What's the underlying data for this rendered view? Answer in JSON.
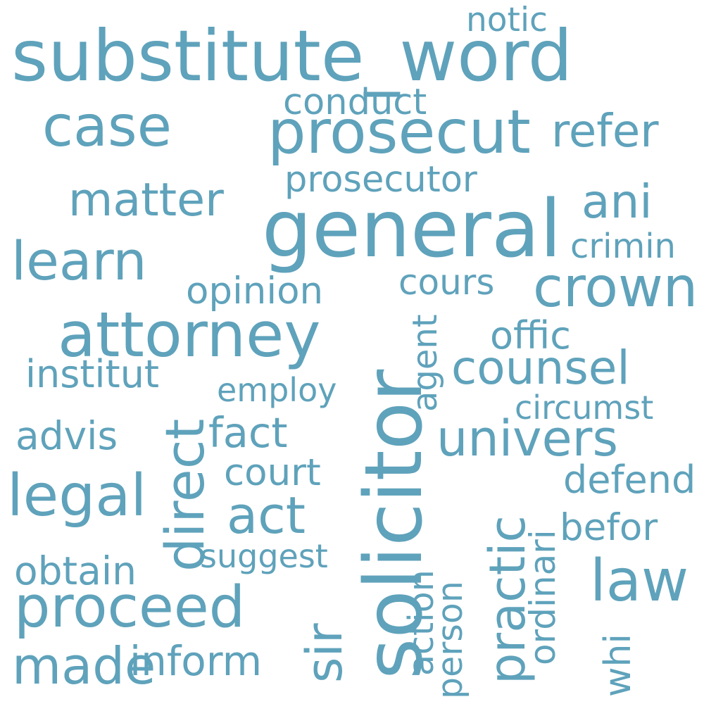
{
  "word_color": "#5fa2bb",
  "background": "#ffffff",
  "words": {
    "substitute_word": "substitute_word",
    "notic": "notic",
    "case": "case",
    "prosecut": "prosecut",
    "refer": "refer",
    "conduct": "conduct",
    "prosecutor": "prosecutor",
    "matter": "matter",
    "ani": "ani",
    "general": "general",
    "crimin": "crimin",
    "learn": "learn",
    "crown": "crown",
    "cours": "cours",
    "opinion": "opinion",
    "attorney": "attorney",
    "offic": "offic",
    "counsel": "counsel",
    "institut": "institut",
    "employ": "employ",
    "circumst": "circumst",
    "fact": "fact",
    "advis": "advis",
    "univers": "univers",
    "court": "court",
    "defend": "defend",
    "legal": "legal",
    "act": "act",
    "befor": "befor",
    "suggest": "suggest",
    "obtain": "obtain",
    "law": "law",
    "proceed": "proceed",
    "inform": "inform",
    "made": "made",
    "solicitor": "solicitor",
    "direct": "direct",
    "agent": "agent",
    "practic": "practic",
    "ordinari": "ordinari",
    "sir": "sir",
    "action": "action",
    "person": "person",
    "whi": "whi"
  }
}
